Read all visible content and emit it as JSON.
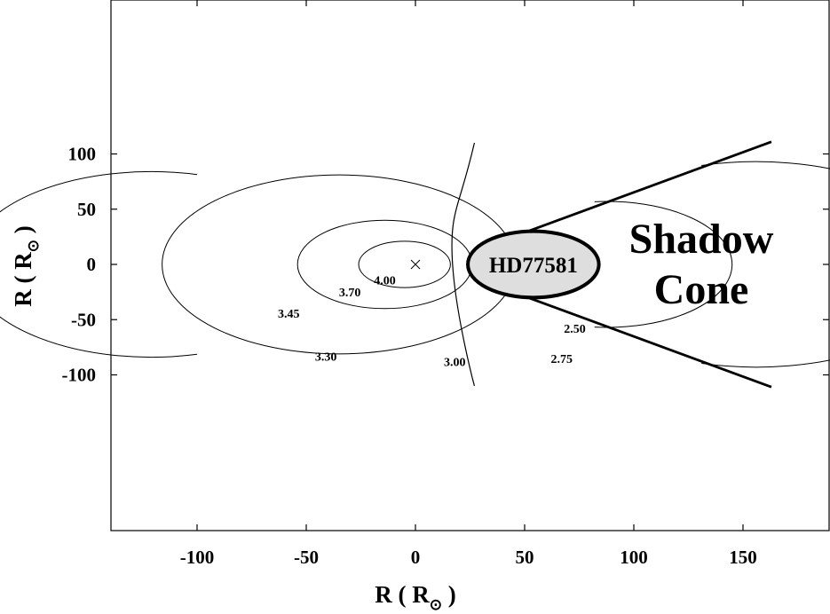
{
  "chart_data": {
    "type": "contour",
    "title": "",
    "xlabel": "R ( R⊙ )",
    "ylabel": "R ( R⊙ )",
    "xlabel_main": "R ( R",
    "xlabel_close": " )",
    "sun_symbol": "⊙",
    "xlim": [
      -140,
      190
    ],
    "ylim": [
      -120,
      120
    ],
    "xticks": [
      -100,
      -50,
      0,
      50,
      100,
      150
    ],
    "xtick_labels": [
      "-100",
      "-50",
      "0",
      "50",
      "100",
      "150"
    ],
    "yticks": [
      100,
      50,
      0,
      -50,
      -100
    ],
    "ytick_labels": [
      "100",
      "50",
      "0",
      "-50",
      "-100"
    ],
    "grid": false,
    "compact_object": {
      "x": 0,
      "y": 0,
      "marker": "×"
    },
    "star": {
      "name": "HD77581",
      "center_x": 54,
      "center_y": 0,
      "radius": 30,
      "fill": "#dedede"
    },
    "shadow_cone": {
      "label_line1": "Shadow",
      "label_line2": "Cone",
      "apex_x": 40,
      "edge_x": 163,
      "edge_y": 111
    },
    "contours": [
      {
        "label": "4.00",
        "type": "circle",
        "cx": -5,
        "cy": 0,
        "r": 21,
        "label_x": -19,
        "label_y": -18
      },
      {
        "label": "3.70",
        "type": "circle",
        "cx": -14,
        "cy": 0,
        "r": 40,
        "label_x": -35,
        "label_y": -29
      },
      {
        "label": "3.45",
        "type": "circle",
        "cx": -35,
        "cy": 0,
        "r": 81,
        "label_x": -63,
        "label_y": -48
      },
      {
        "label": "3.30",
        "type": "arc",
        "cx": -79,
        "cy": 0,
        "r": 84,
        "start_x": -100,
        "label_x": -46,
        "label_y": -87
      },
      {
        "label": "3.00",
        "type": "curve",
        "points": [
          [
            27,
            110
          ],
          [
            20,
            50
          ],
          [
            17,
            0
          ],
          [
            20,
            -50
          ],
          [
            27,
            -110
          ]
        ],
        "label_x": 13,
        "label_y": -92
      },
      {
        "label": "2.75",
        "type": "arc",
        "cx": 106,
        "cy": 0,
        "r": 93,
        "end_x": 131,
        "label_x": 62,
        "label_y": -89
      },
      {
        "label": "2.50",
        "type": "arc",
        "cx": 76,
        "cy": 0,
        "r": 57,
        "end_x": 82,
        "label_x": 68,
        "label_y": -62
      }
    ]
  }
}
